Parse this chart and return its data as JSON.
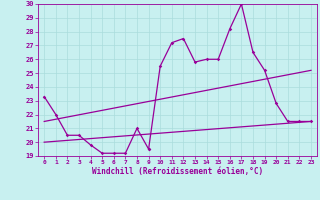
{
  "xlabel": "Windchill (Refroidissement éolien,°C)",
  "bg_color": "#c8f0f0",
  "grid_color": "#aadddd",
  "line_color": "#990099",
  "xlim": [
    -0.5,
    23.5
  ],
  "ylim": [
    19,
    30
  ],
  "yticks": [
    19,
    20,
    21,
    22,
    23,
    24,
    25,
    26,
    27,
    28,
    29,
    30
  ],
  "xticks": [
    0,
    1,
    2,
    3,
    4,
    5,
    6,
    7,
    8,
    9,
    10,
    11,
    12,
    13,
    14,
    15,
    16,
    17,
    18,
    19,
    20,
    21,
    22,
    23
  ],
  "line1_x": [
    0,
    1,
    2,
    3,
    4,
    5,
    6,
    7,
    8,
    9
  ],
  "line1_y": [
    23.3,
    22.0,
    20.5,
    20.5,
    19.8,
    19.2,
    19.2,
    19.2,
    21.0,
    19.5
  ],
  "line2_x": [
    9,
    10,
    11,
    12,
    13,
    14,
    15,
    16,
    17,
    18,
    19,
    20,
    21,
    22,
    23
  ],
  "line2_y": [
    19.5,
    25.5,
    27.2,
    27.5,
    25.8,
    26.0,
    26.0,
    28.2,
    30.0,
    26.5,
    25.2,
    22.8,
    21.5,
    21.5,
    21.5
  ],
  "line3_x": [
    0,
    23
  ],
  "line3_y": [
    21.5,
    25.2
  ],
  "line4_x": [
    0,
    23
  ],
  "line4_y": [
    20.0,
    21.5
  ]
}
